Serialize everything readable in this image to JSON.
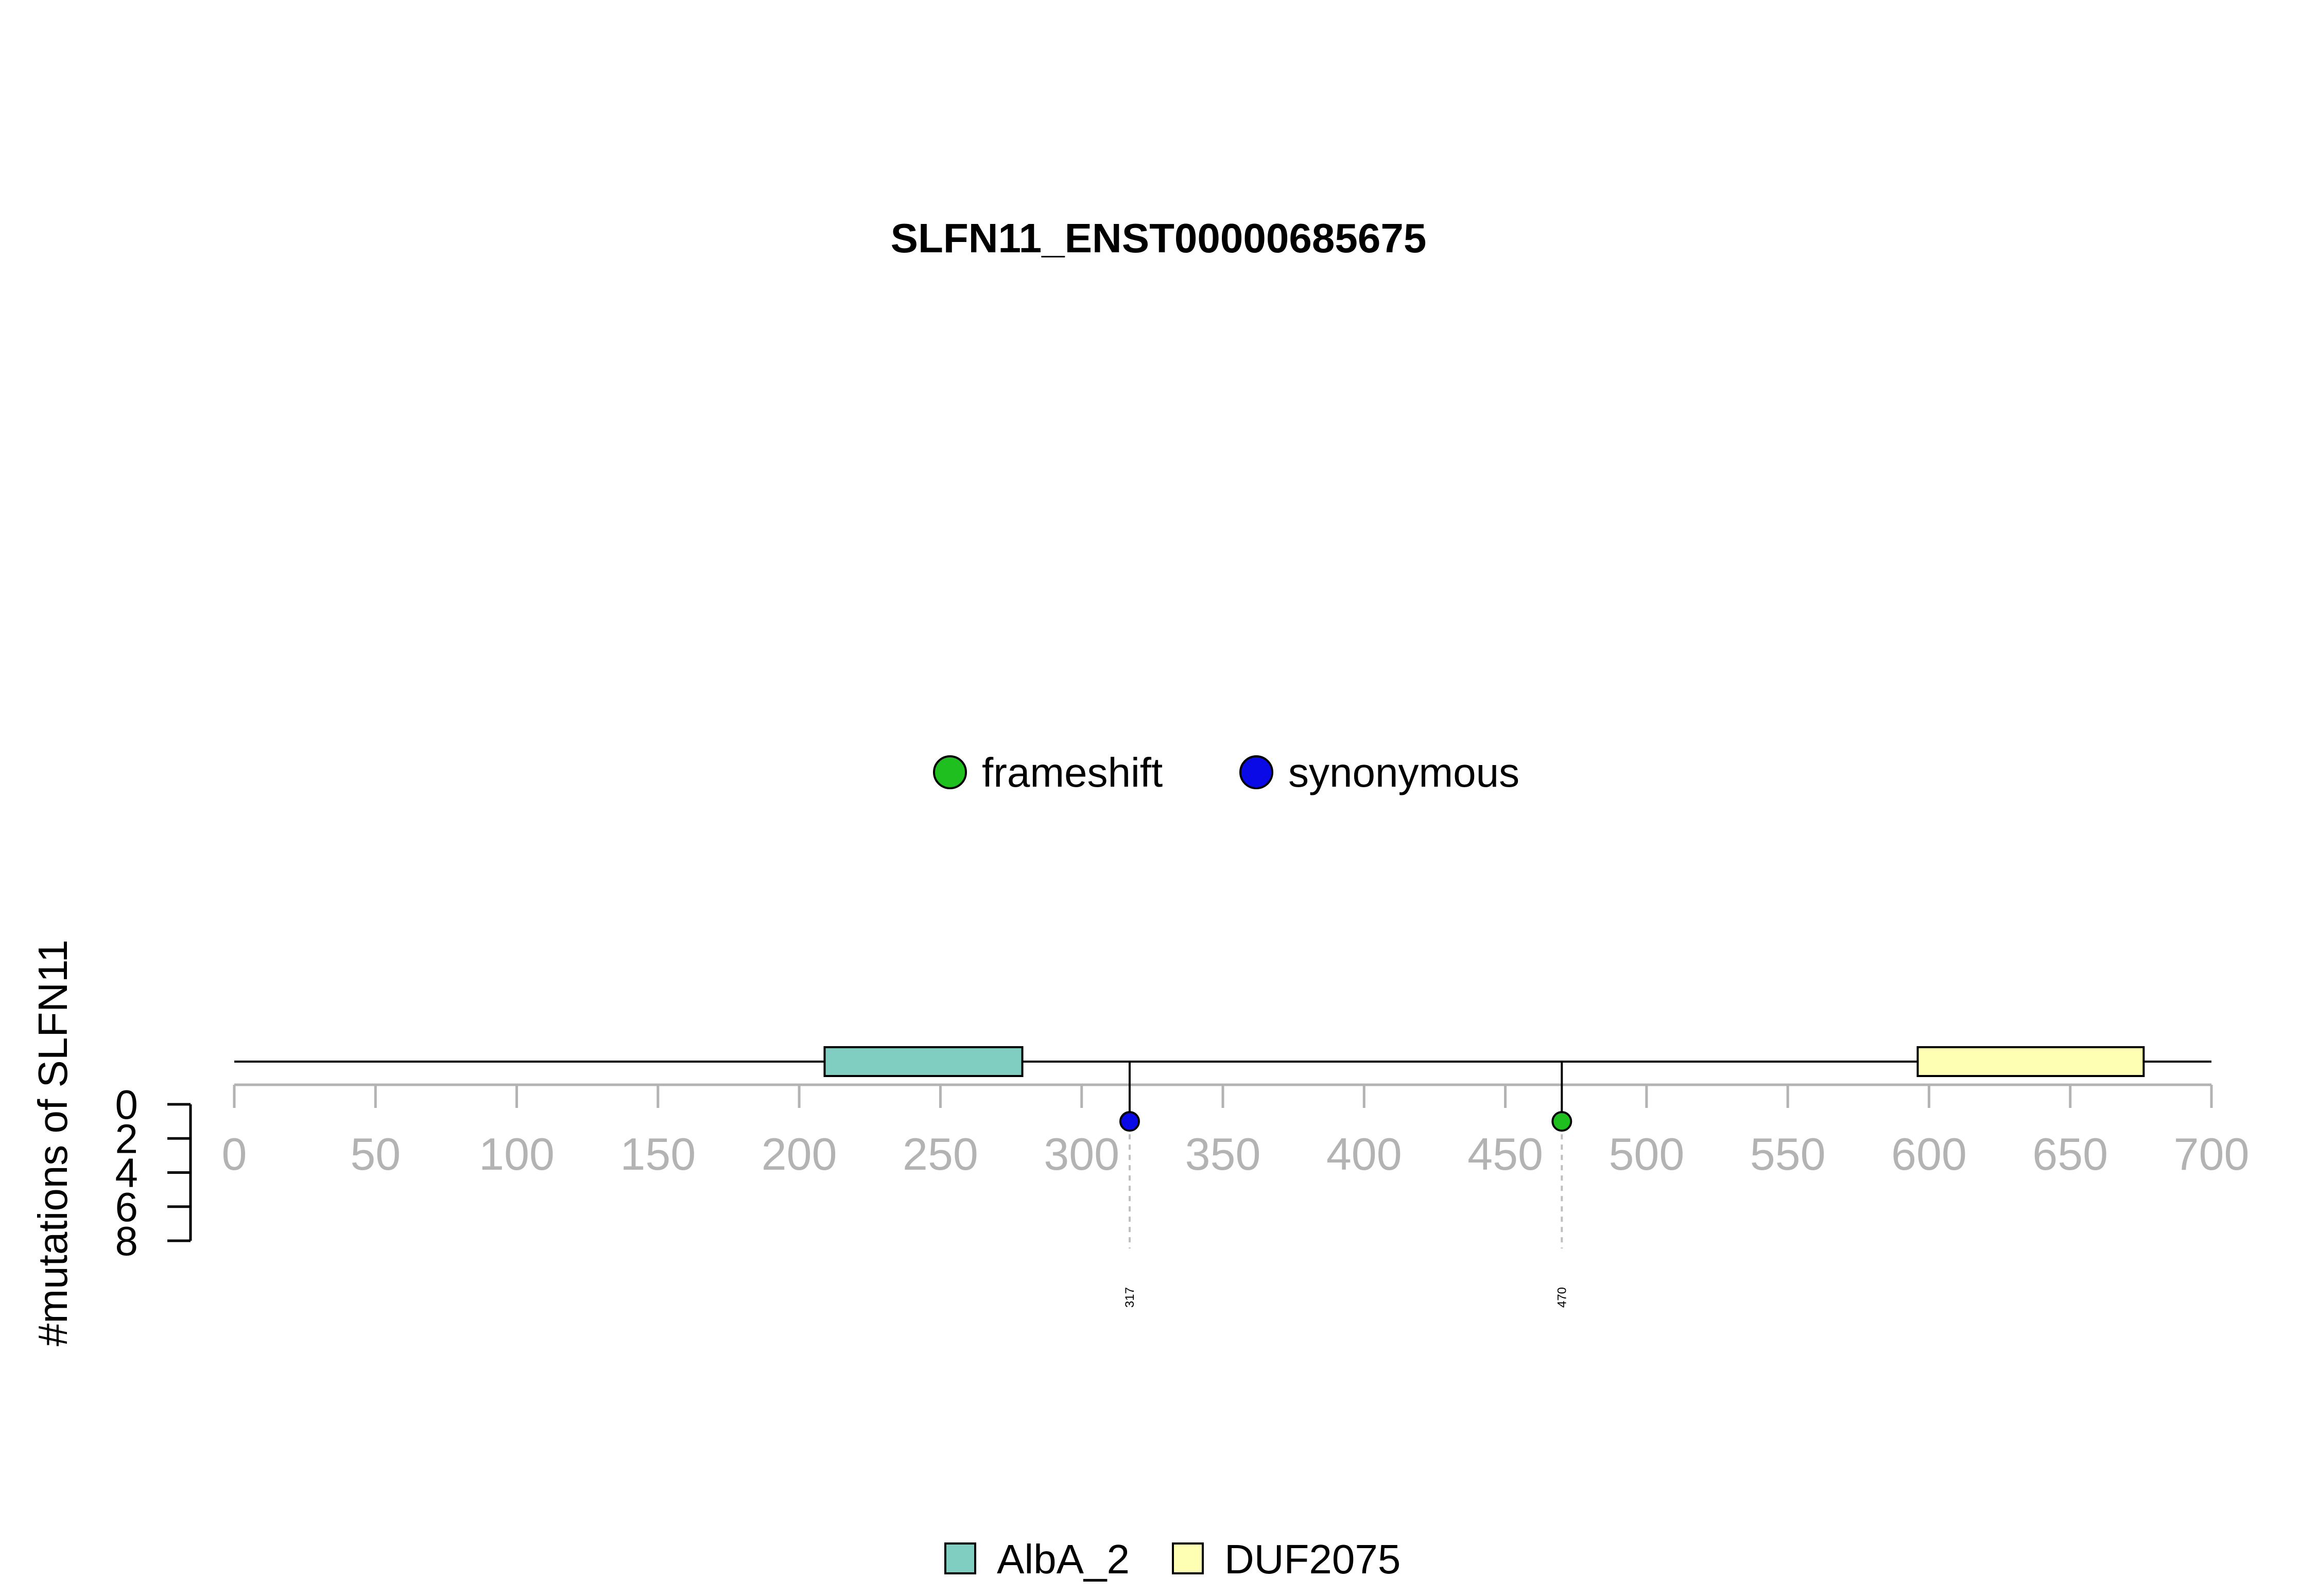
{
  "chart_data": {
    "type": "lollipop",
    "title": "SLFN11_ENST00000685675",
    "ylabel": "#mutations of SLFN11",
    "xlim": [
      0,
      700
    ],
    "x_ticks": [
      0,
      50,
      100,
      150,
      200,
      250,
      300,
      350,
      400,
      450,
      500,
      550,
      600,
      650,
      700
    ],
    "ylim": [
      0,
      8
    ],
    "y_ticks": [
      0,
      2,
      4,
      6,
      8
    ],
    "mutation_legend": [
      {
        "name": "frameshift",
        "color": "#1fbf1f"
      },
      {
        "name": "synonymous",
        "color": "#0a0ae6"
      }
    ],
    "mutations": [
      {
        "position": 317,
        "count": 1,
        "type": "synonymous",
        "color": "#0a0ae6",
        "label": "317"
      },
      {
        "position": 470,
        "count": 1,
        "type": "frameshift",
        "color": "#1fbf1f",
        "label": "470"
      }
    ],
    "domains": [
      {
        "name": "AlbA_2",
        "start": 209,
        "end": 279,
        "color": "#80cdc1"
      },
      {
        "name": "DUF2075",
        "start": 596,
        "end": 676,
        "color": "#ffffb3"
      }
    ],
    "domain_legend": [
      {
        "name": "AlbA_2",
        "color": "#80cdc1"
      },
      {
        "name": "DUF2075",
        "color": "#ffffb3"
      }
    ],
    "axis_color": "#b3b3b3",
    "backbone_color": "#000000"
  }
}
